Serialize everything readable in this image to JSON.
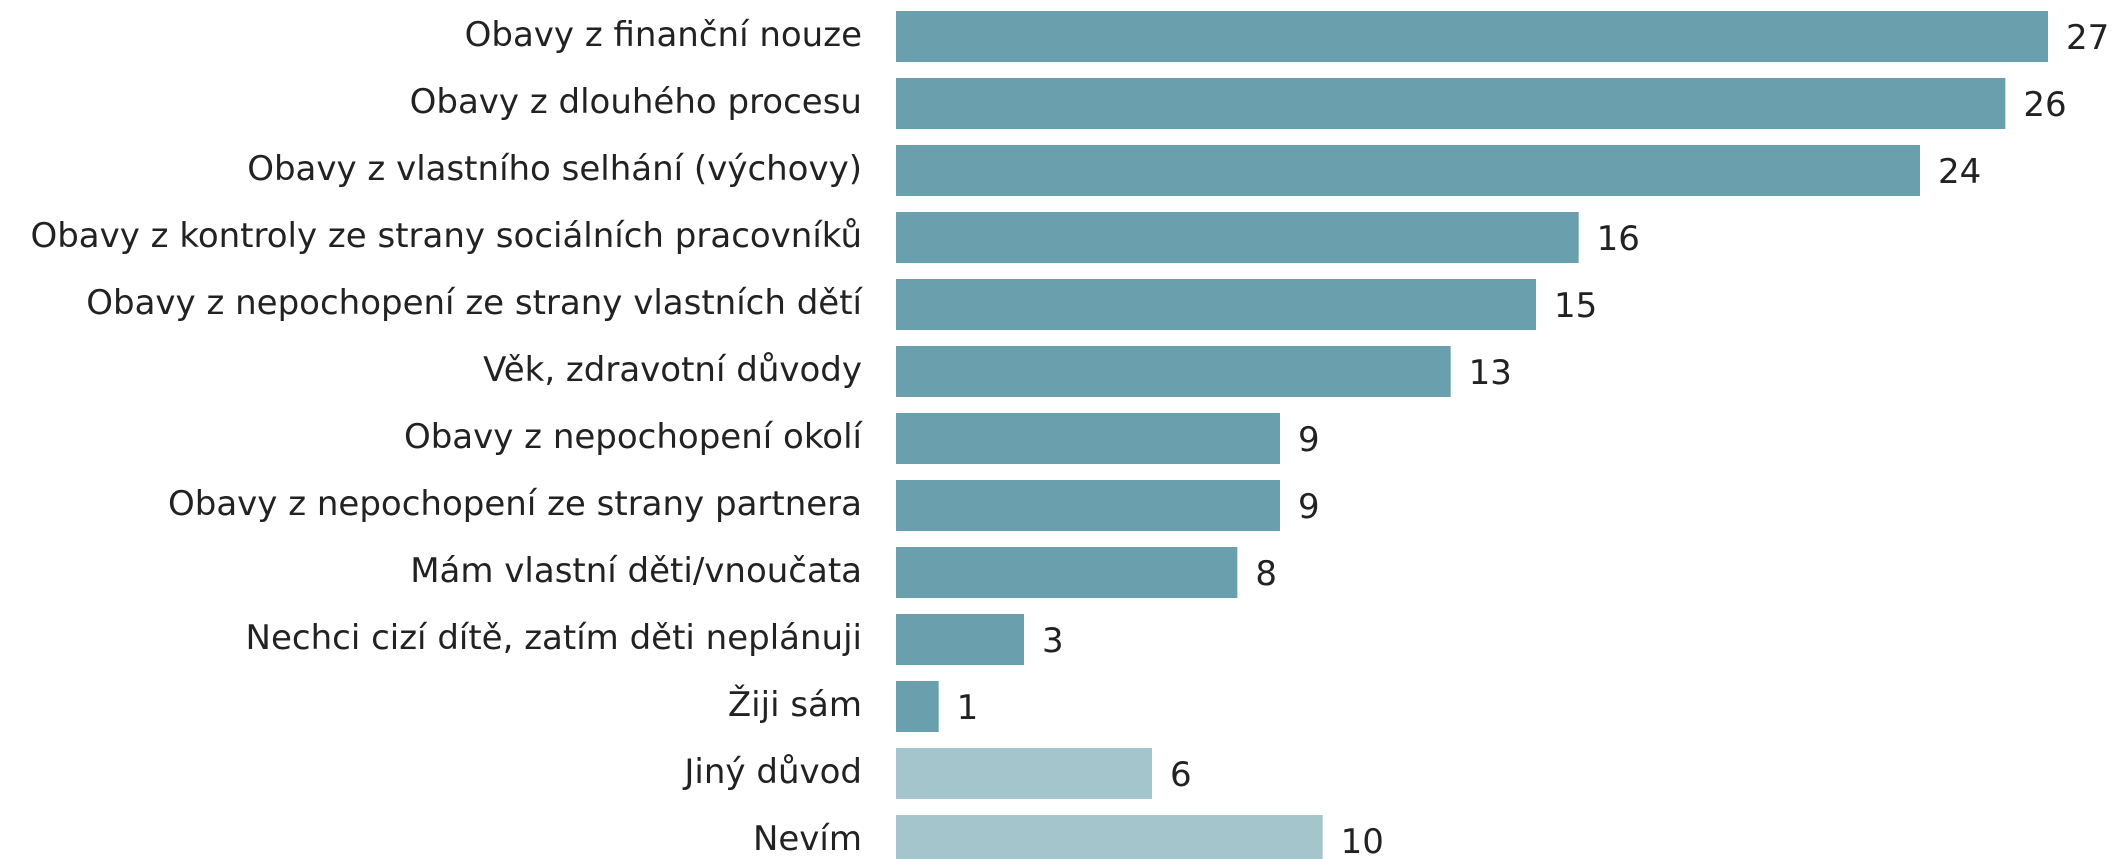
{
  "chart_data": {
    "type": "bar",
    "orientation": "horizontal",
    "categories": [
      "Obavy z finanční nouze",
      "Obavy z dlouhého procesu",
      "Obavy z vlastního selhání (výchovy)",
      "Obavy z kontroly ze strany sociálních pracovníků",
      "Obavy z nepochopení ze strany vlastních dětí",
      "Věk, zdravotní důvody",
      "Obavy z nepochopení okolí",
      "Obavy z nepochopení ze strany partnera",
      "Mám vlastní děti/vnoučata",
      "Nechci cizí dítě, zatím děti neplánuji",
      "Žiji sám",
      "Jiný důvod",
      "Nevím"
    ],
    "values": [
      27,
      26,
      24,
      16,
      15,
      13,
      9,
      9,
      8,
      3,
      1,
      6,
      10
    ],
    "colors": [
      "#6a9fad",
      "#6a9fad",
      "#6a9fad",
      "#6a9fad",
      "#6a9fad",
      "#6a9fad",
      "#6a9fad",
      "#6a9fad",
      "#6a9fad",
      "#6a9fad",
      "#6a9fad",
      "#a5c5cc",
      "#a5c5cc"
    ]
  }
}
